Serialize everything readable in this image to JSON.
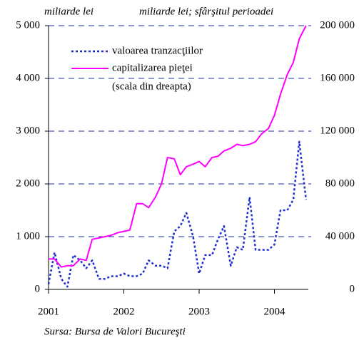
{
  "chart_data": {
    "type": "line",
    "left_unit": "miliarde lei",
    "right_unit": "miliarde lei; sfârşitul perioadei",
    "source": "Sursa: Bursa de Valori Bucureşti",
    "annotation": "(scala din dreapta)",
    "x": [
      2001,
      2001.08,
      2001.17,
      2001.25,
      2001.33,
      2001.42,
      2001.5,
      2001.58,
      2001.67,
      2001.75,
      2001.83,
      2001.92,
      2002,
      2002.08,
      2002.17,
      2002.25,
      2002.33,
      2002.42,
      2002.5,
      2002.58,
      2002.67,
      2002.75,
      2002.83,
      2002.92,
      2003,
      2003.08,
      2003.17,
      2003.25,
      2003.33,
      2003.42,
      2003.5,
      2003.58,
      2003.67,
      2003.75,
      2003.83,
      2003.92,
      2004,
      2004.08,
      2004.17,
      2004.25,
      2004.33,
      2004.42
    ],
    "xlim": [
      2001,
      2004.45
    ],
    "xticks": [
      2001,
      2002,
      2003,
      2004
    ],
    "ylim": [
      0,
      5000
    ],
    "yticks": [
      0,
      {
        "value": 1000,
        "label": "1 000"
      },
      {
        "value": 2000,
        "label": "2 000"
      },
      {
        "value": 3000,
        "label": "3 000"
      },
      {
        "value": 4000,
        "label": "4 000"
      },
      {
        "value": 5000,
        "label": "5 000"
      }
    ],
    "y2lim": [
      0,
      200000
    ],
    "y2ticks": [
      0,
      {
        "value": 40000,
        "label": "40 000"
      },
      {
        "value": 80000,
        "label": "80 000"
      },
      {
        "value": 120000,
        "label": "120 000"
      },
      {
        "value": 160000,
        "label": "160 000"
      },
      {
        "value": 200000,
        "label": "200 000"
      }
    ],
    "grid": true,
    "series": [
      {
        "name": "valoarea tranzacţiilor",
        "color": "#1f2fd0",
        "dash": "dotted",
        "values": [
          100,
          700,
          200,
          50,
          650,
          550,
          400,
          550,
          200,
          200,
          250,
          250,
          300,
          250,
          250,
          300,
          550,
          450,
          450,
          400,
          1100,
          1200,
          1450,
          1000,
          300,
          650,
          650,
          950,
          1200,
          450,
          800,
          750,
          1750,
          750,
          750,
          750,
          850,
          1500,
          1500,
          1700,
          2800,
          1700
        ]
      },
      {
        "name": "capitalizarea pieţei",
        "color": "#ff00ff",
        "axis": "y2",
        "values": [
          23000,
          23000,
          17000,
          18000,
          18000,
          23000,
          22000,
          38000,
          39000,
          40000,
          41000,
          43000,
          44000,
          45000,
          65000,
          65000,
          62000,
          70000,
          80000,
          100000,
          99000,
          87000,
          93000,
          95000,
          97000,
          93000,
          100000,
          101000,
          105000,
          107000,
          110000,
          109000,
          110000,
          112000,
          118000,
          122000,
          132000,
          148000,
          163000,
          172000,
          190000,
          200000
        ]
      }
    ]
  }
}
